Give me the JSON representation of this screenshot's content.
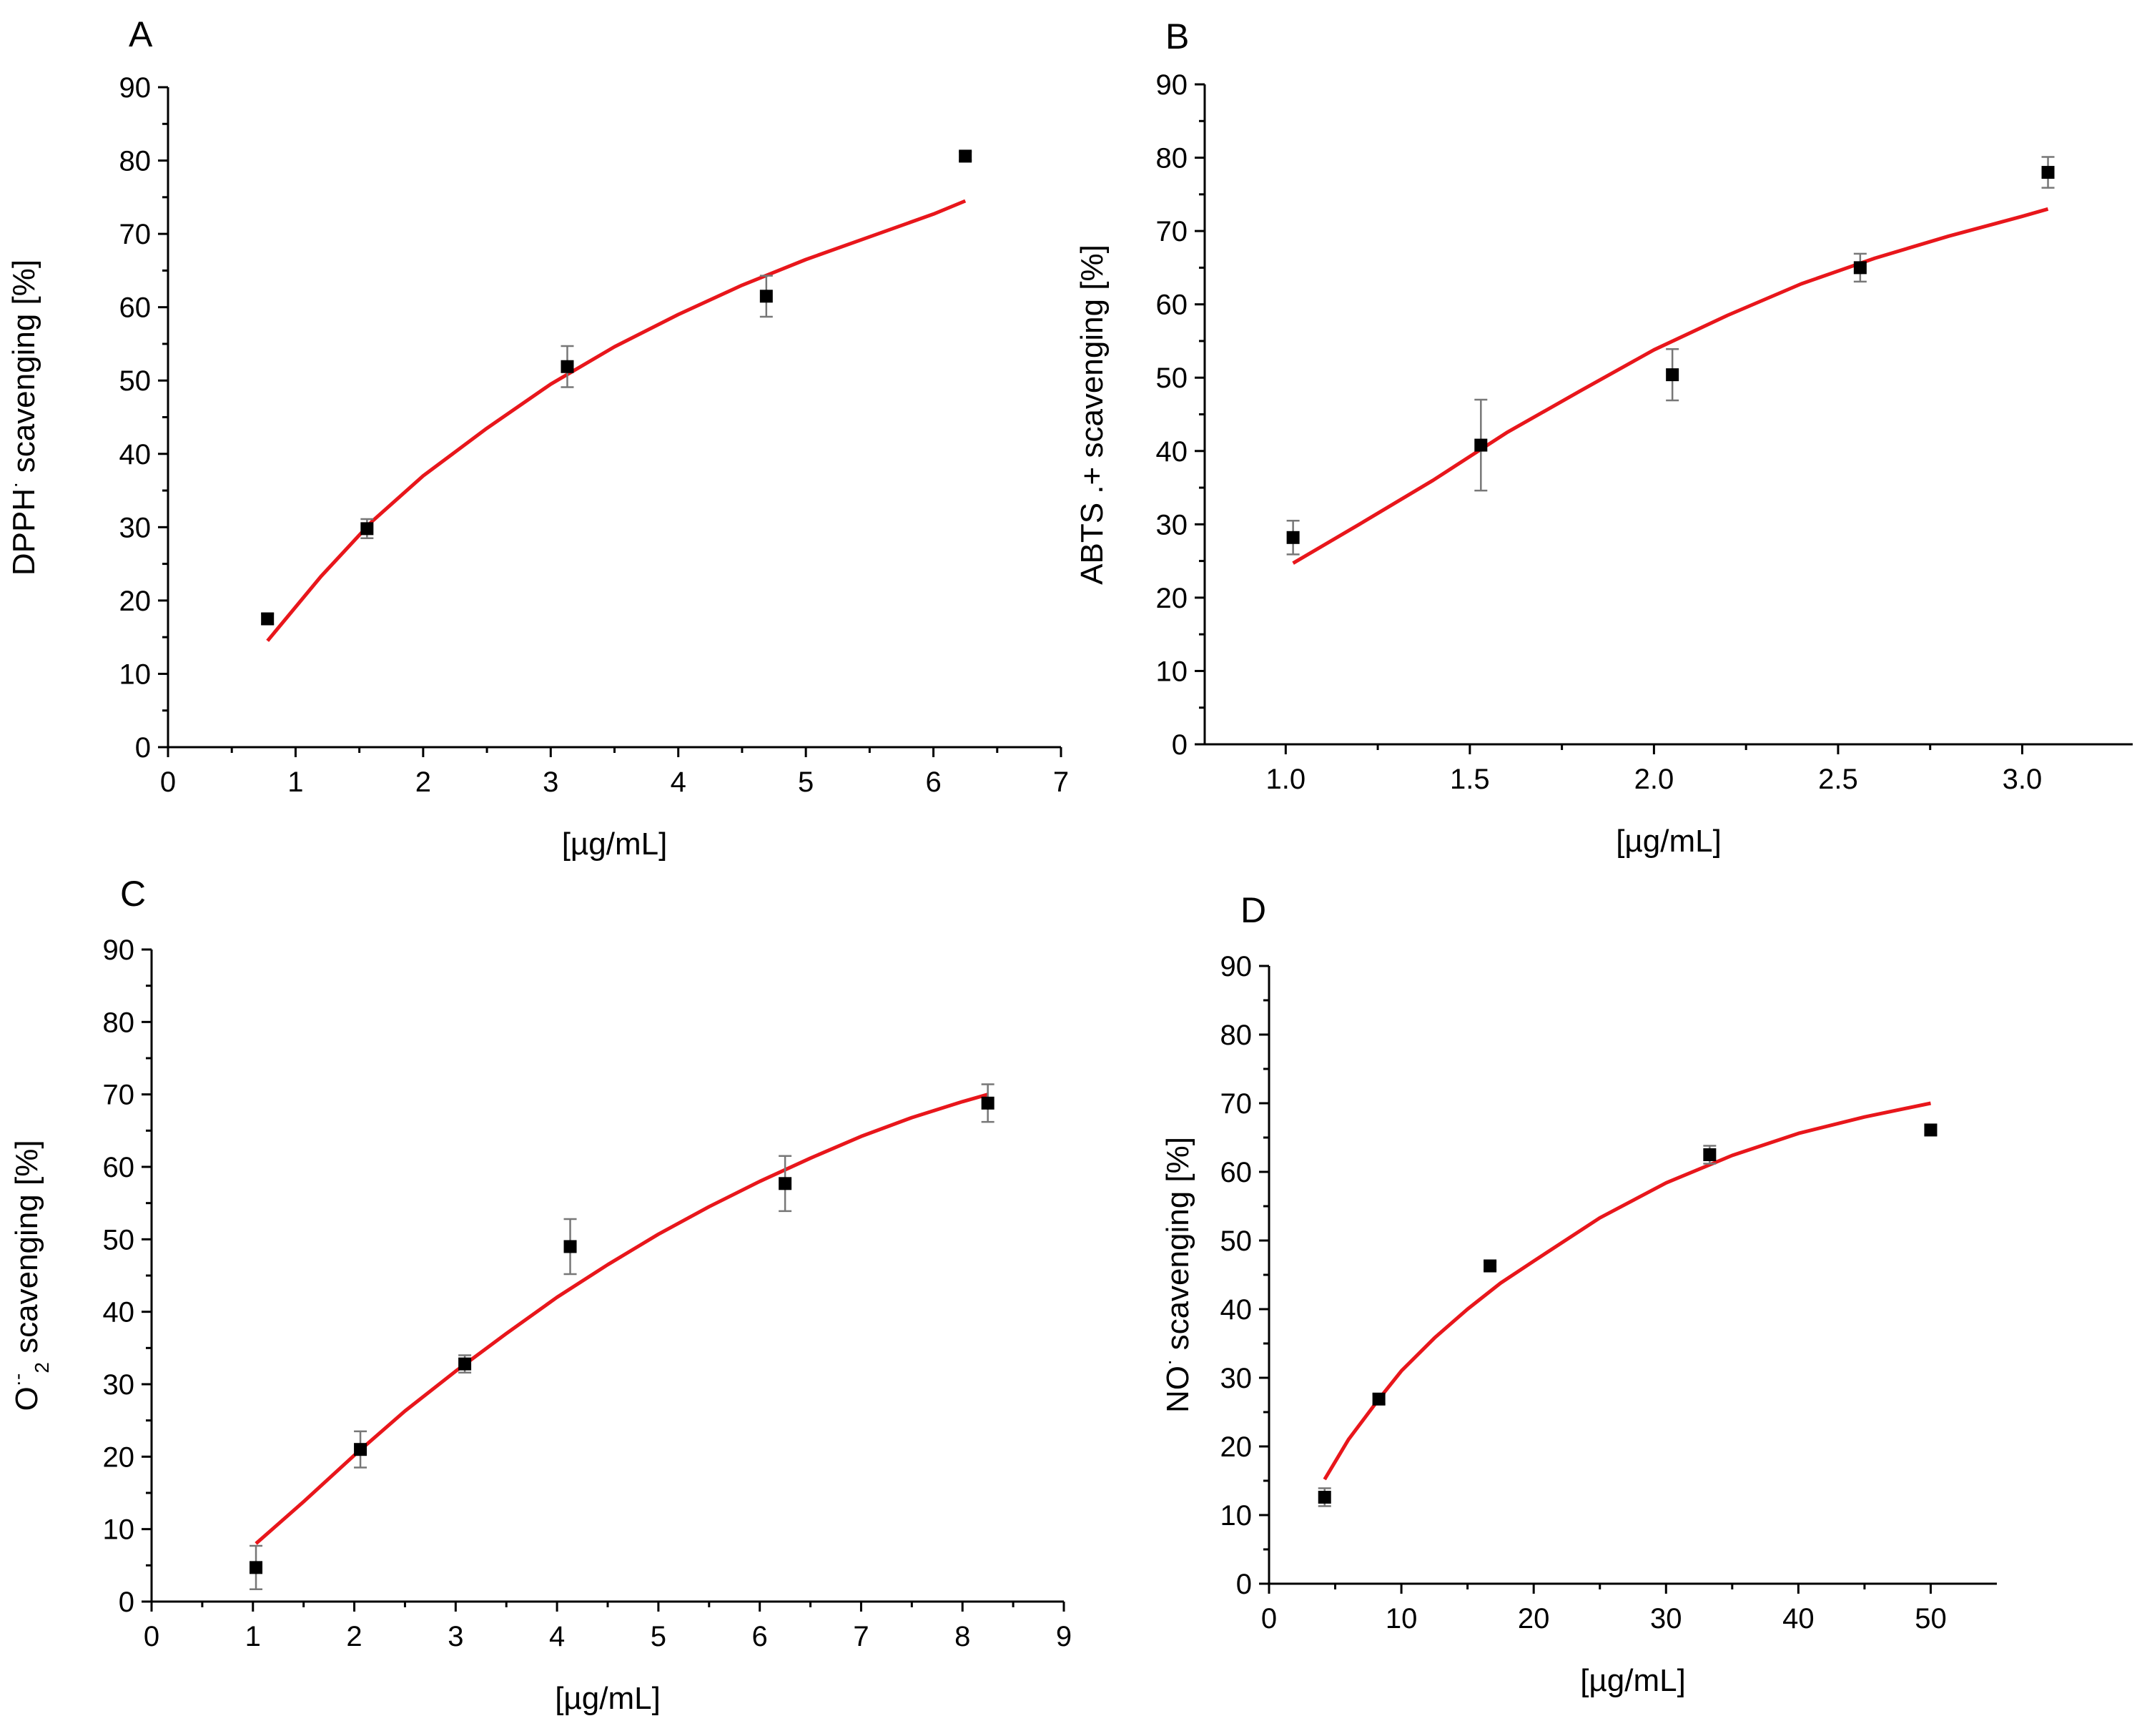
{
  "colors": {
    "fit": "#e8161b",
    "marker": "#000000",
    "errorbar": "#777777",
    "axis": "#000000"
  },
  "chart_data": [
    {
      "type": "scatter",
      "panel": "A",
      "xlabel": "[µg/mL]",
      "ylabel": {
        "main": "DPPH",
        "sup": "·",
        "rest": " scavenging [%]"
      },
      "xlim": [
        0,
        7
      ],
      "ylim": [
        0,
        90
      ],
      "xticks": [
        0,
        1,
        2,
        3,
        4,
        5,
        6,
        7
      ],
      "xtick_labels": [
        "0",
        "1",
        "2",
        "3",
        "4",
        "5",
        "6",
        "7"
      ],
      "xminor": [
        0.5,
        1.5,
        2.5,
        3.5,
        4.5,
        5.5,
        6.5
      ],
      "yticks": [
        0,
        10,
        20,
        30,
        40,
        50,
        60,
        70,
        80,
        90
      ],
      "ytick_labels": [
        "0",
        "10",
        "20",
        "30",
        "40",
        "50",
        "60",
        "70",
        "80",
        "90"
      ],
      "yminor": [
        5,
        15,
        25,
        35,
        45,
        55,
        65,
        75,
        85
      ],
      "points": {
        "x": [
          0.78,
          1.56,
          3.13,
          4.69,
          6.25
        ],
        "y": [
          17.5,
          29.8,
          51.9,
          61.5,
          80.6
        ],
        "err": [
          0.7,
          1.3,
          2.8,
          2.8,
          0.6
        ]
      },
      "fit": {
        "x": [
          0.78,
          1.2,
          1.6,
          2.0,
          2.5,
          3.0,
          3.5,
          4.0,
          4.5,
          5.0,
          5.5,
          6.0,
          6.25
        ],
        "y": [
          14.5,
          23.3,
          30.8,
          37.0,
          43.5,
          49.5,
          54.6,
          59.0,
          63.0,
          66.5,
          69.6,
          72.7,
          74.5
        ]
      }
    },
    {
      "type": "scatter",
      "panel": "B",
      "xlabel": "[µg/mL]",
      "ylabel": {
        "main": "ABTS .+ scavenging [%]",
        "sup": "",
        "rest": ""
      },
      "xlim": [
        0.78,
        3.3
      ],
      "ylim": [
        0,
        90
      ],
      "xticks": [
        1.0,
        1.5,
        2.0,
        2.5,
        3.0
      ],
      "xtick_labels": [
        "1.0",
        "1.5",
        "2.0",
        "2.5",
        "3.0"
      ],
      "xminor": [
        1.25,
        1.75,
        2.25,
        2.75
      ],
      "yticks": [
        0,
        10,
        20,
        30,
        40,
        50,
        60,
        70,
        80,
        90
      ],
      "ytick_labels": [
        "0",
        "10",
        "20",
        "30",
        "40",
        "50",
        "60",
        "70",
        "80",
        "90"
      ],
      "yminor": [
        5,
        15,
        25,
        35,
        45,
        55,
        65,
        75,
        85
      ],
      "points": {
        "x": [
          1.02,
          1.53,
          2.05,
          2.56,
          3.07
        ],
        "y": [
          28.2,
          40.8,
          50.4,
          65.0,
          78.0
        ],
        "err": [
          2.3,
          6.2,
          3.5,
          1.9,
          2.1
        ]
      },
      "fit": {
        "x": [
          1.02,
          1.2,
          1.4,
          1.6,
          1.8,
          2.0,
          2.2,
          2.4,
          2.6,
          2.8,
          3.0,
          3.07
        ],
        "y": [
          24.7,
          30.0,
          36.0,
          42.5,
          48.2,
          53.8,
          58.5,
          62.8,
          66.3,
          69.3,
          72.0,
          73.0
        ]
      }
    },
    {
      "type": "scatter",
      "panel": "C",
      "xlabel": "[µg/mL]",
      "ylabel": {
        "main": "O",
        "sup": "·-",
        "sub": "2",
        "rest": " scavenging [%]"
      },
      "xlim": [
        0,
        9
      ],
      "ylim": [
        0,
        90
      ],
      "xticks": [
        0,
        1,
        2,
        3,
        4,
        5,
        6,
        7,
        8,
        9
      ],
      "xtick_labels": [
        "0",
        "1",
        "2",
        "3",
        "4",
        "5",
        "6",
        "7",
        "8",
        "9"
      ],
      "xminor": [
        0.5,
        1.5,
        2.5,
        3.5,
        4.5,
        5.5,
        6.5,
        7.5,
        8.5
      ],
      "yticks": [
        0,
        10,
        20,
        30,
        40,
        50,
        60,
        70,
        80,
        90
      ],
      "ytick_labels": [
        "0",
        "10",
        "20",
        "30",
        "40",
        "50",
        "60",
        "70",
        "80",
        "90"
      ],
      "yminor": [
        5,
        15,
        25,
        35,
        45,
        55,
        65,
        75,
        85
      ],
      "points": {
        "x": [
          1.03,
          2.06,
          3.09,
          4.13,
          6.25,
          8.25
        ],
        "y": [
          4.7,
          21.0,
          32.8,
          49.0,
          57.7,
          68.8
        ],
        "err": [
          3.0,
          2.5,
          1.2,
          3.8,
          3.8,
          2.6
        ]
      },
      "fit": {
        "x": [
          1.03,
          1.5,
          2.0,
          2.5,
          3.0,
          3.5,
          4.0,
          4.5,
          5.0,
          5.5,
          6.0,
          6.5,
          7.0,
          7.5,
          8.0,
          8.25
        ],
        "y": [
          8.0,
          13.8,
          20.2,
          26.3,
          31.8,
          37.0,
          42.0,
          46.5,
          50.7,
          54.5,
          58.0,
          61.2,
          64.2,
          66.8,
          69.0,
          70.0
        ]
      }
    },
    {
      "type": "scatter",
      "panel": "D",
      "xlabel": "[µg/mL]",
      "ylabel": {
        "main": "NO",
        "sup": "·",
        "rest": " scavenging [%]"
      },
      "xlim": [
        0,
        55
      ],
      "ylim": [
        0,
        90
      ],
      "xticks": [
        0,
        10,
        20,
        30,
        40,
        50
      ],
      "xtick_labels": [
        "0",
        "10",
        "20",
        "30",
        "40",
        "50"
      ],
      "xminor": [
        5,
        15,
        25,
        35,
        45
      ],
      "yticks": [
        0,
        10,
        20,
        30,
        40,
        50,
        60,
        70,
        80,
        90
      ],
      "ytick_labels": [
        "0",
        "10",
        "20",
        "30",
        "40",
        "50",
        "60",
        "70",
        "80",
        "90"
      ],
      "yminor": [
        5,
        15,
        25,
        35,
        45,
        55,
        65,
        75,
        85
      ],
      "points": {
        "x": [
          4.2,
          8.3,
          16.7,
          33.3,
          50.0
        ],
        "y": [
          12.6,
          26.9,
          46.3,
          62.5,
          66.1
        ],
        "err": [
          1.3,
          0.7,
          0.6,
          1.3,
          0.7
        ]
      },
      "fit": {
        "x": [
          4.2,
          6.0,
          8.3,
          10.0,
          12.5,
          15.0,
          17.5,
          20.0,
          25.0,
          30.0,
          35.0,
          40.0,
          45.0,
          50.0
        ],
        "y": [
          15.2,
          21.0,
          26.9,
          31.0,
          35.8,
          40.0,
          43.8,
          47.0,
          53.3,
          58.4,
          62.4,
          65.6,
          68.0,
          70.0
        ]
      }
    }
  ]
}
